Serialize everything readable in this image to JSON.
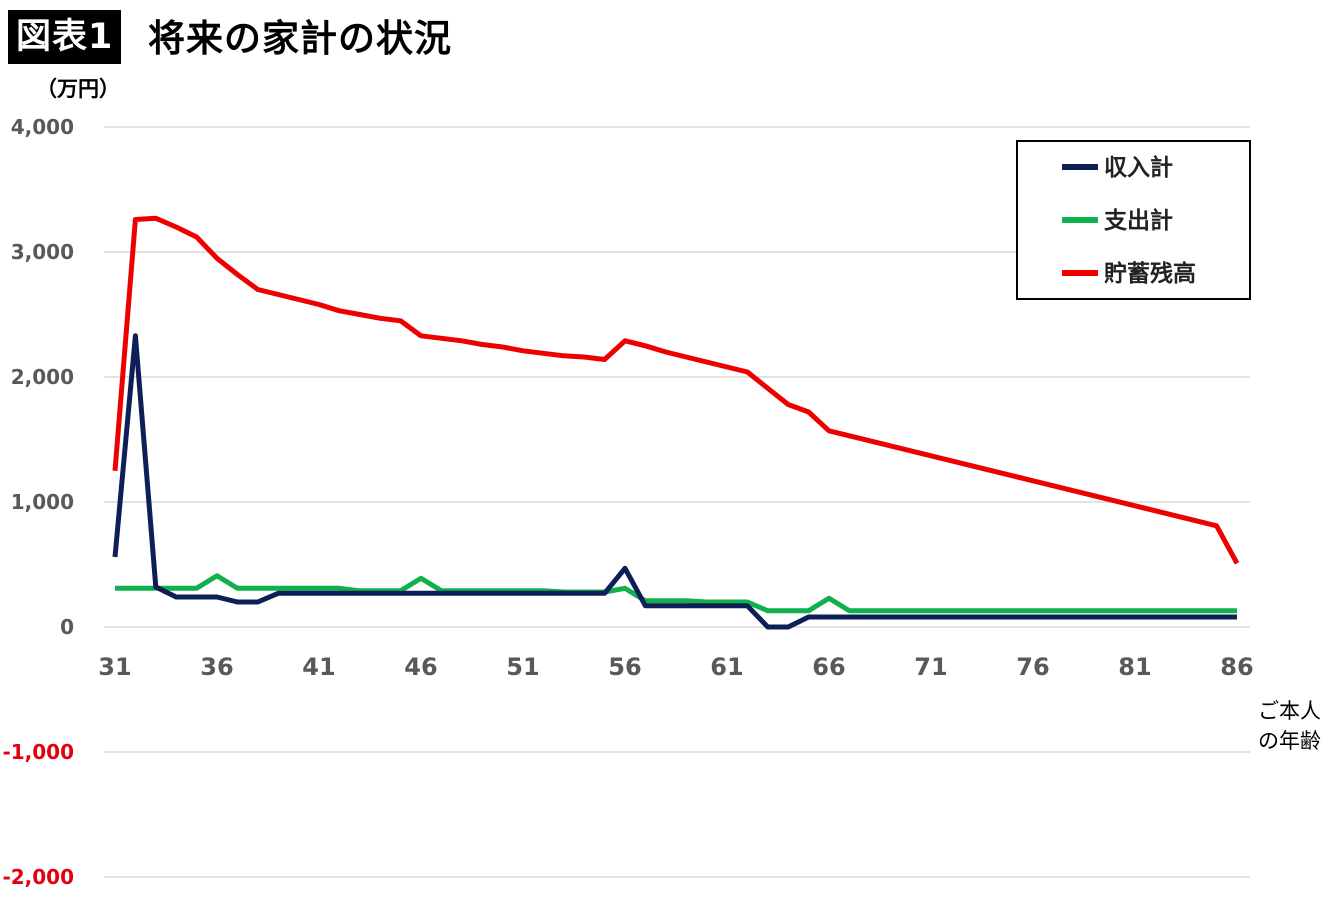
{
  "header": {
    "badge": "図表1",
    "title": "将来の家計の状況"
  },
  "chart_data": {
    "type": "line",
    "title": "将来の家計の状況",
    "ylabel": "（万円）",
    "xlabel_lines": [
      "ご本人",
      "の年齢"
    ],
    "xlim": [
      31,
      86
    ],
    "ylim": [
      -2000,
      4000
    ],
    "yticks": [
      -2000,
      -1000,
      0,
      1000,
      2000,
      3000,
      4000
    ],
    "ytick_labels": [
      "-2,000",
      "-1,000",
      "0",
      "1,000",
      "2,000",
      "3,000",
      "4,000"
    ],
    "xticks": [
      31,
      36,
      41,
      46,
      51,
      56,
      61,
      66,
      71,
      76,
      81,
      86
    ],
    "grid": true,
    "legend_position": "top-right",
    "x": [
      31,
      32,
      33,
      34,
      35,
      36,
      37,
      38,
      39,
      40,
      41,
      42,
      43,
      44,
      45,
      46,
      47,
      48,
      49,
      50,
      51,
      52,
      53,
      54,
      55,
      56,
      57,
      58,
      59,
      60,
      61,
      62,
      63,
      64,
      65,
      66,
      67,
      68,
      69,
      70,
      71,
      72,
      73,
      74,
      75,
      76,
      77,
      78,
      79,
      80,
      81,
      82,
      83,
      84,
      85,
      86
    ],
    "series": [
      {
        "name": "収入計",
        "color": "#0d1f56",
        "values": [
          560,
          2330,
          320,
          240,
          240,
          240,
          200,
          200,
          270,
          270,
          270,
          270,
          270,
          270,
          270,
          270,
          270,
          270,
          270,
          270,
          270,
          270,
          270,
          270,
          270,
          470,
          170,
          170,
          170,
          170,
          170,
          170,
          0,
          0,
          80,
          80,
          80,
          80,
          80,
          80,
          80,
          80,
          80,
          80,
          80,
          80,
          80,
          80,
          80,
          80,
          80,
          80,
          80,
          80,
          80,
          80
        ]
      },
      {
        "name": "支出計",
        "color": "#10b04a",
        "values": [
          310,
          310,
          310,
          310,
          310,
          410,
          310,
          310,
          310,
          310,
          310,
          310,
          290,
          290,
          290,
          390,
          290,
          290,
          290,
          290,
          290,
          290,
          280,
          280,
          280,
          310,
          210,
          210,
          210,
          200,
          200,
          200,
          130,
          130,
          130,
          230,
          130,
          130,
          130,
          130,
          130,
          130,
          130,
          130,
          130,
          130,
          130,
          130,
          130,
          130,
          130,
          130,
          130,
          130,
          130,
          130
        ]
      },
      {
        "name": "貯蓄残高",
        "color": "#ee0000",
        "values": [
          1250,
          3260,
          3270,
          3200,
          3120,
          2950,
          2820,
          2700,
          2660,
          2620,
          2580,
          2530,
          2500,
          2470,
          2450,
          2330,
          2310,
          2290,
          2260,
          2240,
          2210,
          2190,
          2170,
          2160,
          2140,
          2290,
          2250,
          2200,
          2160,
          2120,
          2080,
          2040,
          1910,
          1780,
          1720,
          1570,
          1530,
          1490,
          1450,
          1410,
          1370,
          1330,
          1290,
          1250,
          1210,
          1170,
          1130,
          1090,
          1050,
          1010,
          970,
          930,
          890,
          850,
          810,
          510
        ]
      }
    ]
  }
}
